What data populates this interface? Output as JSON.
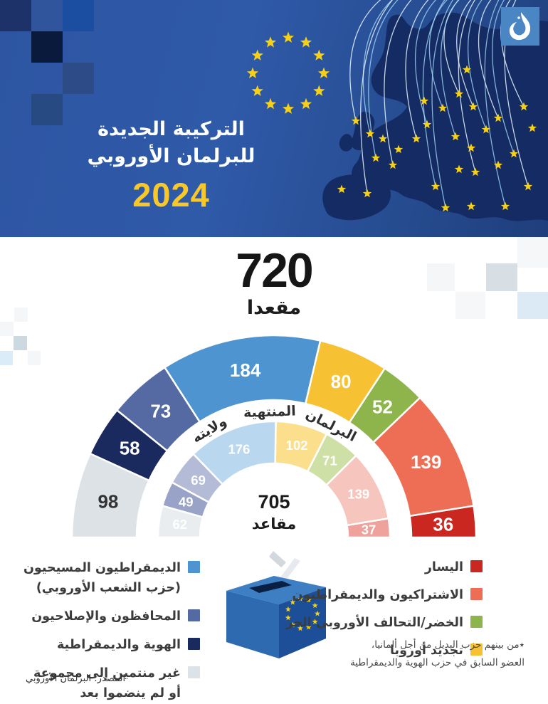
{
  "header": {
    "brand": "الجزيرة",
    "title_line1": "التركيبة الجديدة",
    "title_line2": "للبرلمان الأوروبي",
    "year": "2024"
  },
  "totals": {
    "new_total": "720",
    "new_total_unit": "مقعدا",
    "old_total": "705",
    "old_total_unit": "مقاعد"
  },
  "chart_data": {
    "type": "semicircle-donut",
    "direction": "rtl",
    "title": "720 مقعدا",
    "rings": [
      {
        "name": "new-parliament-2024",
        "total": 720,
        "center_label": "720 مقعدا",
        "series": [
          {
            "name": "اليسار",
            "value": 36,
            "color": "#c9271f",
            "text_color": "#ffffff"
          },
          {
            "name": "الاشتراكيون والديمقراطيون",
            "value": 139,
            "color": "#ee6e55",
            "text_color": "#ffffff"
          },
          {
            "name": "الخضر/التحالف الأوروبي الحر",
            "value": 52,
            "color": "#8eb54c",
            "text_color": "#ffffff"
          },
          {
            "name": "تجديد أوروبا",
            "value": 80,
            "color": "#f6c233",
            "text_color": "#ffffff"
          },
          {
            "name": "الديمقراطيون المسيحيون (حزب الشعب الأوروبي)",
            "value": 184,
            "color": "#4d94d0",
            "text_color": "#ffffff"
          },
          {
            "name": "المحافظون والإصلاحيون",
            "value": 73,
            "color": "#5569a3",
            "text_color": "#ffffff"
          },
          {
            "name": "الهوية والديمقراطية",
            "value": 58,
            "color": "#1b2a5e",
            "text_color": "#ffffff"
          },
          {
            "name": "غير منتمين إلى مجموعة أو لم ينضموا بعد",
            "value": 98,
            "color": "#dde2e6",
            "text_color": "#333333"
          }
        ]
      },
      {
        "name": "outgoing-parliament",
        "total": 705,
        "ring_title": "البرلمان المنتهية ولايته",
        "center_label": "705 مقاعد",
        "series": [
          {
            "name": "اليسار",
            "value": 37,
            "color": "#efa29b",
            "text_color": "#ffffff"
          },
          {
            "name": "الاشتراكيون والديمقراطيون",
            "value": 139,
            "color": "#f6c5bd",
            "text_color": "#ffffff"
          },
          {
            "name": "الخضر/التحالف الأوروبي الحر",
            "value": 71,
            "color": "#cfe0a6",
            "text_color": "#ffffff"
          },
          {
            "name": "تجديد أوروبا",
            "value": 102,
            "color": "#fbdf8c",
            "text_color": "#ffffff"
          },
          {
            "name": "الديمقراطيون المسيحيون",
            "value": 176,
            "color": "#b9d7ee",
            "text_color": "#ffffff"
          },
          {
            "name": "المحافظون والإصلاحيون",
            "value": 69,
            "color": "#b3bbd7",
            "text_color": "#ffffff"
          },
          {
            "name": "الهوية والديمقراطية",
            "value": 49,
            "color": "#99a3c7",
            "text_color": "#ffffff"
          },
          {
            "name": "غير منتمين إلى مجموعة",
            "value": 62,
            "color": "#e9edf0",
            "text_color": "#ffffff"
          }
        ]
      }
    ]
  },
  "legend_left": {
    "items": [
      {
        "label_line1": "الديمقراطيون المسيحيون",
        "label_line2": "(حزب الشعب الأوروبي)",
        "color": "#4d94d0"
      },
      {
        "label_line1": "المحافظون والإصلاحيون",
        "label_line2": "",
        "color": "#5569a3"
      },
      {
        "label_line1": "الهوية والديمقراطية",
        "label_line2": "",
        "color": "#1b2a5e"
      },
      {
        "label_line1": "غير منتمين إلى مجموعة",
        "label_line2": "أو لم ينضموا بعد",
        "color": "#dde2e6"
      }
    ]
  },
  "legend_right": {
    "items": [
      {
        "label_line1": "اليسار",
        "label_line2": "",
        "color": "#c9271f"
      },
      {
        "label_line1": "الاشتراكيون والديمقراطيون",
        "label_line2": "",
        "color": "#ee6e55"
      },
      {
        "label_line1": "الخضر/التحالف الأوروبي الحر",
        "label_line2": "",
        "color": "#8eb54c"
      },
      {
        "label_line1": "تجديد أوروبا",
        "label_line2": "",
        "color": "#f6c233"
      }
    ],
    "footnote_line1": "٭من بينهم حزب البديل من أجل ألمانيا،",
    "footnote_line2": "العضو السابق في حزب الهوية والديمقراطية"
  },
  "source": "المصدر: البرلمان الأوروبي",
  "colors": {
    "header_blue": "#2d55a2",
    "map_navy": "#152b63",
    "star_yellow": "#f7d117",
    "year_yellow": "#f8c829",
    "aj_logo_blue": "#4a86c3"
  }
}
